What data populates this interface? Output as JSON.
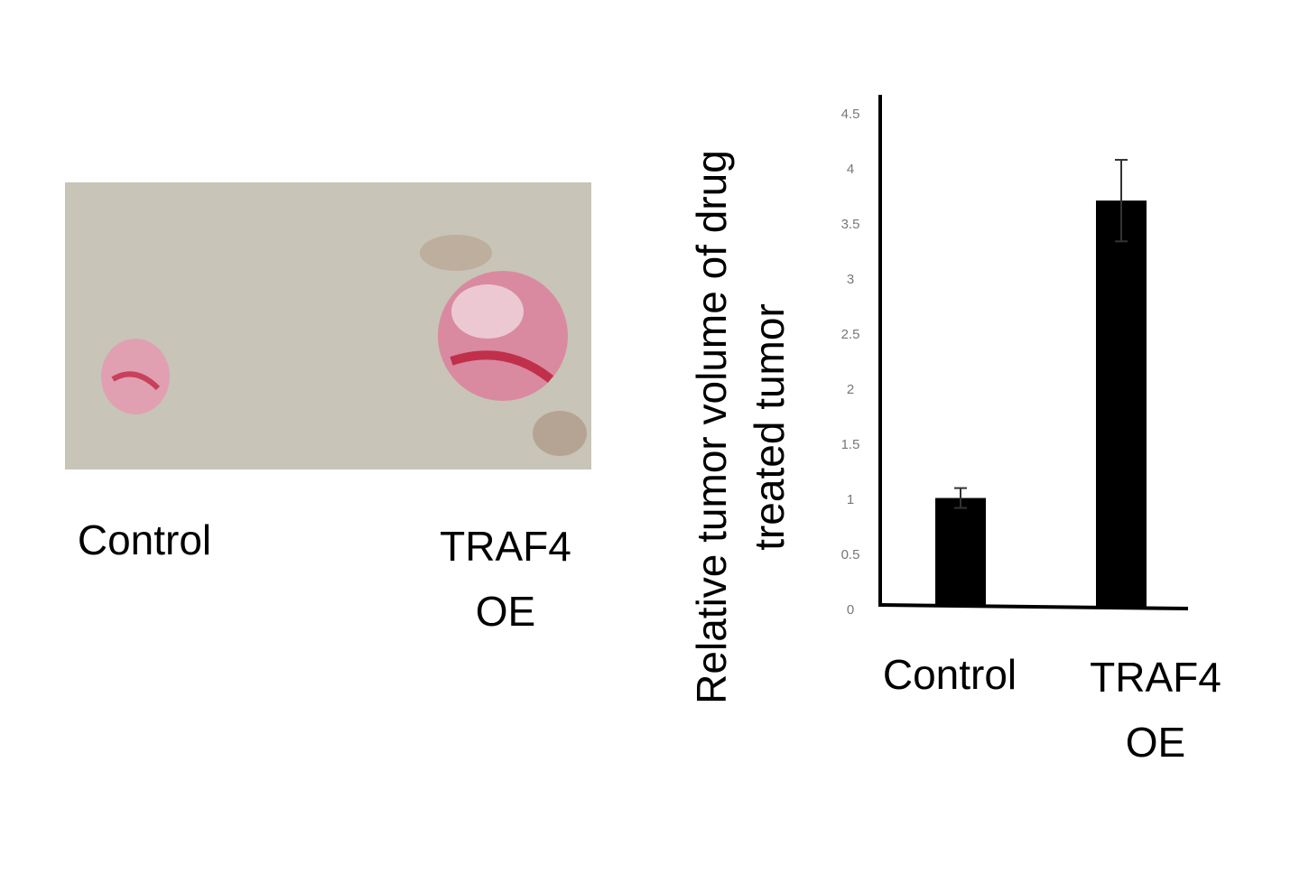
{
  "photo": {
    "labels": [
      "Control",
      "TRAF4 OE"
    ]
  },
  "chart_data": {
    "type": "bar",
    "y_label": "Relative tumor volume of drug treated tumor",
    "categories": [
      "Control",
      "TRAF4 OE"
    ],
    "values": [
      1.02,
      3.72
    ],
    "errors": [
      0.09,
      0.37
    ],
    "color": "#000000",
    "ylim": [
      0,
      4.5
    ],
    "yticks": [
      0,
      0.5,
      1,
      1.5,
      2,
      2.5,
      3,
      3.5,
      4,
      4.5
    ],
    "grid": false
  }
}
